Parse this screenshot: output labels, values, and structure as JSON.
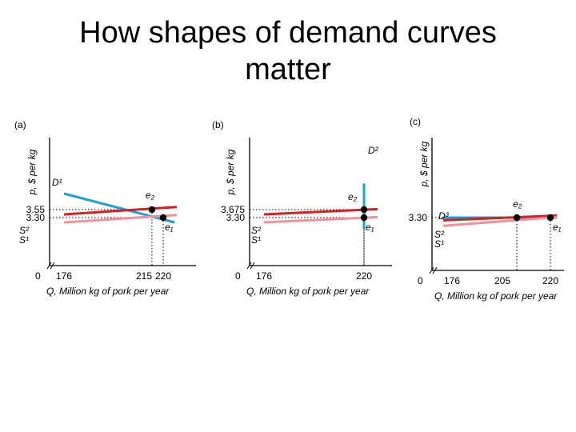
{
  "slide": {
    "title_line1": "How shapes of demand curves",
    "title_line2": "matter"
  },
  "colors": {
    "demand": "#1a9fd6",
    "supply_new": "#d42020",
    "supply_old": "#f0909a",
    "axis": "#000000"
  },
  "chart_data": [
    {
      "panel": "(a)",
      "type": "line",
      "ylabel": "p, $ per kg",
      "xlabel": "Q, Million kg of pork per year",
      "origin_label": "0",
      "x_ticks": [
        "176",
        "215",
        "220"
      ],
      "y_ticks": [
        "3.55",
        "3.30"
      ],
      "series": [
        {
          "name": "D¹",
          "points": [
            [
              176,
              4.05
            ],
            [
              225,
              3.15
            ]
          ]
        },
        {
          "name": "S²",
          "points": [
            [
              176,
              3.4
            ],
            [
              226,
              3.63
            ]
          ]
        },
        {
          "name": "S¹",
          "points": [
            [
              176,
              3.15
            ],
            [
              226,
              3.38
            ]
          ]
        }
      ],
      "equilibria": [
        {
          "label": "e₂",
          "x": 215,
          "y": 3.55
        },
        {
          "label": "e₁",
          "x": 220,
          "y": 3.3
        }
      ]
    },
    {
      "panel": "(b)",
      "type": "line",
      "ylabel": "p, $ per kg",
      "xlabel": "Q, Million kg of pork per year",
      "origin_label": "0",
      "x_ticks": [
        "176",
        "220"
      ],
      "y_ticks": [
        "3.675",
        "3.30"
      ],
      "series": [
        {
          "name": "D²",
          "points": [
            [
              220,
              2.75
            ],
            [
              220,
              4.9
            ]
          ]
        },
        {
          "name": "S²",
          "points": [
            [
              176,
              3.45
            ],
            [
              226,
              3.7
            ]
          ]
        },
        {
          "name": "S¹",
          "points": [
            [
              176,
              3.075
            ],
            [
              226,
              3.325
            ]
          ]
        }
      ],
      "equilibria": [
        {
          "label": "e₂",
          "x": 220,
          "y": 3.675
        },
        {
          "label": "e₁",
          "x": 220,
          "y": 3.3
        }
      ]
    },
    {
      "panel": "(c)",
      "type": "line",
      "ylabel": "p, $ per kg",
      "xlabel": "Q, Million kg of pork per year",
      "origin_label": "0",
      "x_ticks": [
        "176",
        "205",
        "220"
      ],
      "y_ticks": [
        "3.30"
      ],
      "series": [
        {
          "name": "D³",
          "points": [
            [
              172,
              3.3
            ],
            [
              223,
              3.3
            ]
          ]
        },
        {
          "name": "S²",
          "points": [
            [
              172,
              3.215
            ],
            [
              223,
              3.365
            ]
          ]
        },
        {
          "name": "S¹",
          "points": [
            [
              172,
              3.045
            ],
            [
              223,
              3.315
            ]
          ]
        }
      ],
      "equilibria": [
        {
          "label": "e₂",
          "x": 205,
          "y": 3.3
        },
        {
          "label": "e₁",
          "x": 220,
          "y": 3.3
        }
      ]
    }
  ]
}
